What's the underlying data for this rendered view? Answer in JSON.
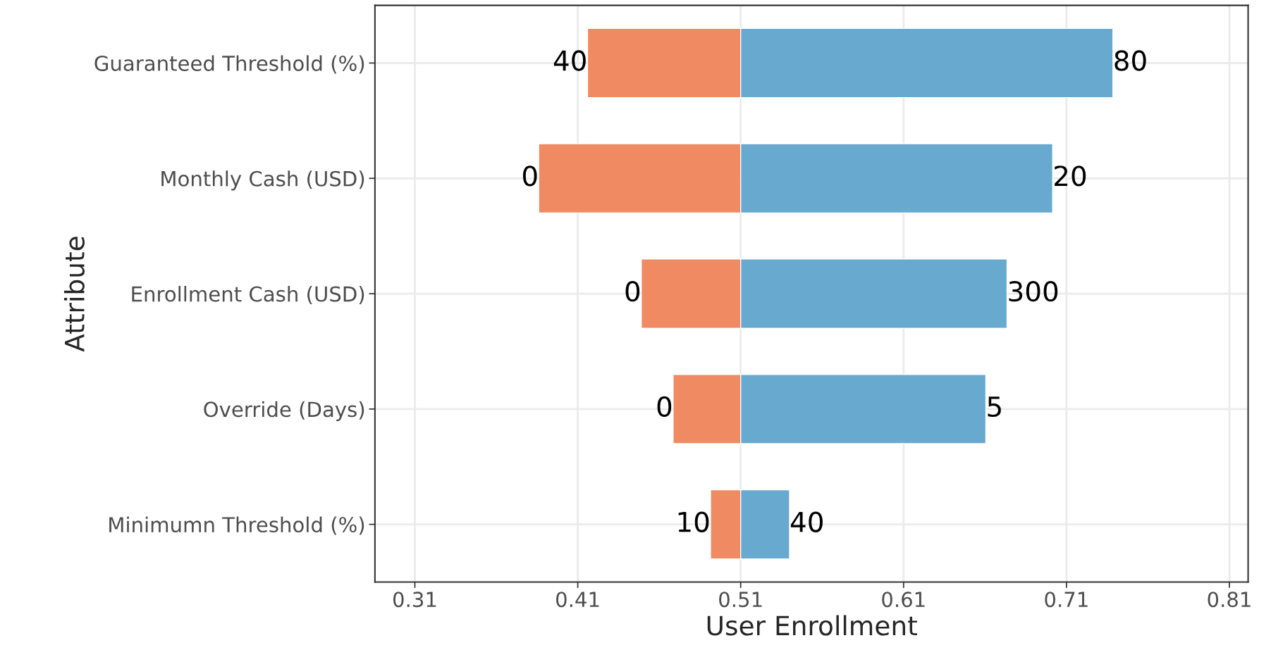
{
  "chart_data": {
    "type": "bar",
    "orientation": "horizontal",
    "xlabel": "User Enrollment",
    "ylabel": "Attribute",
    "categories": [
      "Guaranteed Threshold (%)",
      "Monthly Cash (USD)",
      "Enrollment Cash (USD)",
      "Override (Days)",
      "Minimumn Threshold (%)"
    ],
    "series": [
      {
        "color": "#ef8a62",
        "base": [
          0.416,
          0.386,
          0.449,
          0.4685,
          0.4915
        ],
        "values": [
          0.094,
          0.124,
          0.061,
          0.0415,
          0.0185
        ]
      },
      {
        "color": "#67a9cf",
        "base": [
          0.51,
          0.51,
          0.51,
          0.51,
          0.51
        ],
        "values": [
          0.2285,
          0.1915,
          0.1635,
          0.1505,
          0.03
        ]
      }
    ],
    "annotations": [
      {
        "text": "40",
        "x": 0.416,
        "y": "Guaranteed Threshold (%)"
      },
      {
        "text": "0",
        "x": 0.386,
        "y": "Monthly Cash (USD)"
      },
      {
        "text": "0",
        "x": 0.449,
        "y": "Enrollment Cash (USD)"
      },
      {
        "text": "0",
        "x": 0.4685,
        "y": "Override (Days)"
      },
      {
        "text": "10",
        "x": 0.4915,
        "y": "Minimumn Threshold (%)"
      },
      {
        "text": "80",
        "x": 0.7385,
        "y": "Guaranteed Threshold (%)"
      },
      {
        "text": "20",
        "x": 0.7015,
        "y": "Monthly Cash (USD)"
      },
      {
        "text": "300",
        "x": 0.6735,
        "y": "Enrollment Cash (USD)"
      },
      {
        "text": "5",
        "x": 0.6605,
        "y": "Override (Days)"
      },
      {
        "text": "40",
        "x": 0.54,
        "y": "Minimumn Threshold (%)"
      }
    ],
    "xlim": [
      0.2855,
      0.8215
    ],
    "xticks": [
      0.31,
      0.41,
      0.51,
      0.61,
      0.71,
      0.81
    ],
    "grid": true,
    "legend": false
  }
}
